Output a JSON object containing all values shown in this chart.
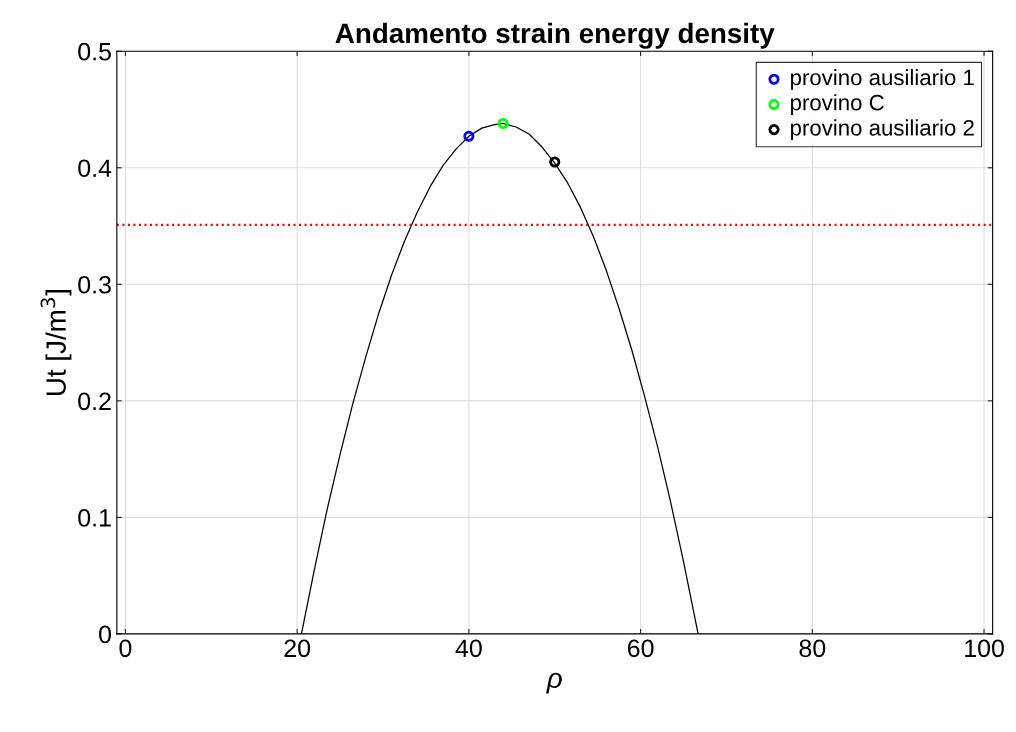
{
  "chart_data": {
    "type": "line",
    "title": "Andamento strain energy density",
    "xlabel": "ρ",
    "ylabel": "Ut [J/m$^{3}$]",
    "xlim": [
      -1,
      101
    ],
    "xticks": [
      0,
      20,
      40,
      60,
      80,
      100
    ],
    "ylim": [
      0,
      0.5
    ],
    "yticks": [
      0,
      0.1,
      0.2,
      0.3,
      0.4,
      0.5
    ],
    "grid": true,
    "legend": "top right",
    "ref_lines": [
      {
        "axis": "y",
        "value": 0.351,
        "color": "#ff0000",
        "line_style": "dotted"
      }
    ],
    "series": [
      {
        "color": "#000000",
        "marker": "none",
        "x": [
          20.5,
          22,
          23.5,
          25,
          26.5,
          28,
          29.5,
          31,
          32.5,
          34,
          35.5,
          37,
          38.5,
          40,
          41.5,
          43,
          44,
          45.5,
          47,
          48.5,
          50,
          51.5,
          53,
          54.5,
          56,
          57.5,
          59,
          60.5,
          62,
          63.5,
          65,
          66.7
        ],
        "values": [
          0,
          0.055,
          0.107,
          0.154,
          0.198,
          0.238,
          0.275,
          0.308,
          0.337,
          0.362,
          0.384,
          0.402,
          0.416,
          0.427,
          0.434,
          0.437,
          0.438,
          0.435,
          0.429,
          0.418,
          0.404,
          0.387,
          0.366,
          0.341,
          0.312,
          0.279,
          0.243,
          0.203,
          0.16,
          0.113,
          0.062,
          0
        ]
      },
      {
        "type": "scatter",
        "name": "provino ausiliario 1",
        "color": "#0000ff",
        "marker": "circle",
        "x": [
          40
        ],
        "values": [
          0.427
        ]
      },
      {
        "type": "scatter",
        "name": "provino C",
        "color": "#00ff00",
        "marker": "circle",
        "x": [
          44
        ],
        "values": [
          0.438
        ]
      },
      {
        "type": "scatter",
        "name": "provino ausiliario 2",
        "color": "#000000",
        "marker": "circle",
        "x": [
          50
        ],
        "values": [
          0.405
        ]
      }
    ]
  }
}
